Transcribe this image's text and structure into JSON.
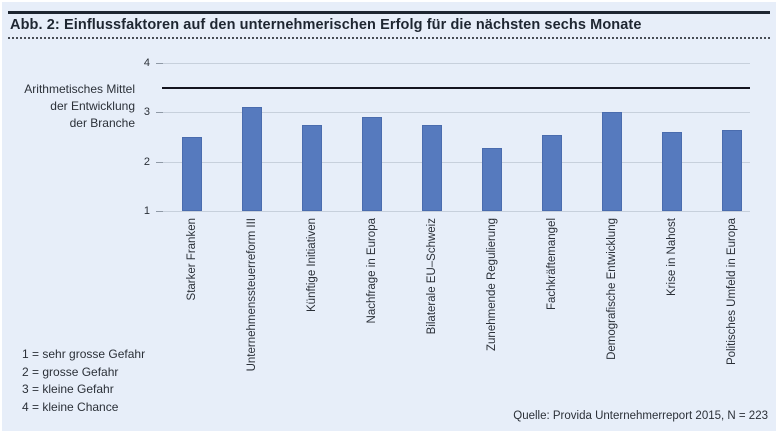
{
  "figure": {
    "title": "Abb. 2: Einflussfaktoren auf den unternehmerischen Erfolg für die nächsten sechs Monate",
    "scale_notes": [
      "1 = sehr grosse Gefahr",
      "2 = grosse Gefahr",
      "3 = kleine Gefahr",
      "4 = kleine Chance"
    ],
    "source": "Quelle: Provida Unternehmerreport 2015, N = 223"
  },
  "chart_data": {
    "type": "bar",
    "title": "Einflussfaktoren auf den unternehmerischen Erfolg für die nächsten sechs Monate",
    "ylabel": "Arithmetisches Mittel der Entwicklung der Branche",
    "ylabel_lines": [
      "Arithmetisches Mittel",
      "der Entwicklung",
      "der Branche"
    ],
    "categories": [
      "Starker Franken",
      "Unternehmenssteuerreform III",
      "Künftige Initiativen",
      "Nachfrage in Europa",
      "Bilaterale EU–Schweiz",
      "Zunehmende Regulierung",
      "Fachkräftemangel",
      "Demografische Entwicklung",
      "Krise in Nahost",
      "Politisches Umfeld in Europa"
    ],
    "values": [
      2.5,
      3.1,
      2.75,
      2.9,
      2.75,
      2.27,
      2.55,
      3.0,
      2.6,
      2.65
    ],
    "ylim": [
      1,
      4
    ],
    "yticks": [
      1,
      2,
      3,
      4
    ],
    "reference_line_y": 3.5,
    "grid": true,
    "legend_position": "none",
    "xlabel": "",
    "scale_meaning": [
      "1 = sehr grosse Gefahr",
      "2 = grosse Gefahr",
      "3 = kleine Gefahr",
      "4 = kleine Chance"
    ],
    "colors": {
      "background": "#e7eef9",
      "bar": "#567abe",
      "bar_border": "#4a6cae",
      "grid": "#c7d0dc",
      "reference_line": "#14141f",
      "title": "#1e2631",
      "text": "#2b3038"
    }
  }
}
